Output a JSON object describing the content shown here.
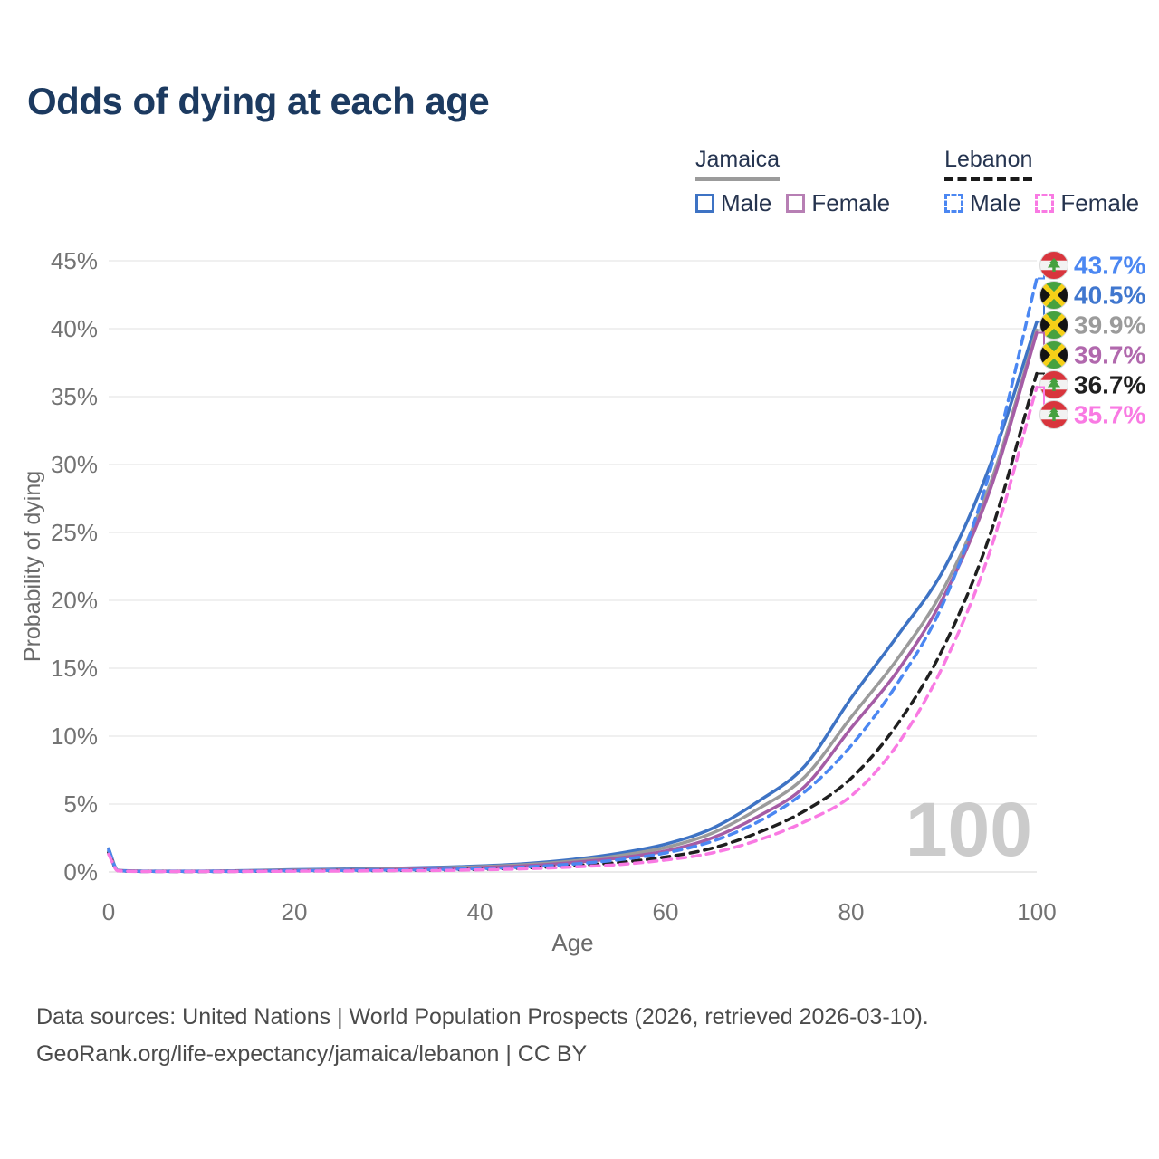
{
  "title": "Odds of dying at each age",
  "watermark_age": "100",
  "legend": {
    "groups": [
      {
        "name": "Jamaica",
        "line_style": "solid",
        "line_color": "#9b9b9b",
        "items": [
          {
            "label": "Male",
            "color": "#3e73c4",
            "dashed": false
          },
          {
            "label": "Female",
            "color": "#b77fb4",
            "dashed": false
          }
        ]
      },
      {
        "name": "Lebanon",
        "line_style": "dashed",
        "line_color": "#1a1a1a",
        "items": [
          {
            "label": "Male",
            "color": "#4b87f2",
            "dashed": true
          },
          {
            "label": "Female",
            "color": "#f97ae3",
            "dashed": true
          }
        ]
      }
    ]
  },
  "chart_data": {
    "type": "line",
    "title": "Odds of dying at each age",
    "xlabel": "Age",
    "ylabel": "Probability of dying",
    "xlim": [
      0,
      100
    ],
    "ylim": [
      0,
      45
    ],
    "x_ticks": [
      0,
      20,
      40,
      60,
      80,
      100
    ],
    "y_ticks": [
      "0%",
      "5%",
      "10%",
      "15%",
      "20%",
      "25%",
      "30%",
      "35%",
      "40%",
      "45%"
    ],
    "grid": "horizontal",
    "legend_position": "top-right",
    "x": [
      0,
      1,
      5,
      10,
      15,
      20,
      25,
      30,
      35,
      40,
      45,
      50,
      55,
      60,
      65,
      70,
      75,
      80,
      85,
      90,
      95,
      100
    ],
    "series": [
      {
        "name": "Jamaica Male",
        "country": "Jamaica",
        "sex": "Male",
        "color": "#3e73c4",
        "dash": "solid",
        "end_value": 40.5,
        "values": [
          1.7,
          0.12,
          0.06,
          0.06,
          0.1,
          0.17,
          0.21,
          0.26,
          0.33,
          0.44,
          0.62,
          0.92,
          1.38,
          2.05,
          3.2,
          5.2,
          7.8,
          12.8,
          17.4,
          22.3,
          30.0,
          40.5
        ]
      },
      {
        "name": "Jamaica Both sexes",
        "country": "Jamaica",
        "sex": "Both",
        "color": "#9b9b9b",
        "dash": "solid",
        "end_value": 39.9,
        "values": [
          1.55,
          0.11,
          0.05,
          0.05,
          0.08,
          0.13,
          0.17,
          0.21,
          0.28,
          0.38,
          0.54,
          0.8,
          1.2,
          1.8,
          2.85,
          4.65,
          7.0,
          11.4,
          15.7,
          20.9,
          28.6,
          39.9
        ]
      },
      {
        "name": "Jamaica Female",
        "country": "Jamaica",
        "sex": "Female",
        "color": "#a55ca5",
        "dash": "solid",
        "end_value": 39.7,
        "values": [
          1.4,
          0.1,
          0.05,
          0.05,
          0.07,
          0.1,
          0.13,
          0.17,
          0.23,
          0.32,
          0.46,
          0.69,
          1.03,
          1.55,
          2.5,
          4.1,
          6.3,
          10.6,
          14.8,
          20.3,
          28.2,
          39.7
        ]
      },
      {
        "name": "Lebanon Both sexes",
        "country": "Lebanon",
        "sex": "Both",
        "color": "#1f1f1f",
        "dash": "dashed",
        "end_value": 36.7,
        "values": [
          1.45,
          0.09,
          0.04,
          0.03,
          0.05,
          0.08,
          0.1,
          0.11,
          0.14,
          0.2,
          0.3,
          0.46,
          0.7,
          1.1,
          1.75,
          2.9,
          4.5,
          6.9,
          10.9,
          16.6,
          24.9,
          36.7
        ]
      },
      {
        "name": "Lebanon Male",
        "country": "Lebanon",
        "sex": "Male",
        "color": "#4b87f2",
        "dash": "dashed",
        "end_value": 43.7,
        "values": [
          1.6,
          0.1,
          0.04,
          0.04,
          0.06,
          0.1,
          0.12,
          0.14,
          0.18,
          0.25,
          0.37,
          0.58,
          0.9,
          1.4,
          2.25,
          3.7,
          5.9,
          9.3,
          13.9,
          19.9,
          29.6,
          43.7
        ]
      },
      {
        "name": "Lebanon Female",
        "country": "Lebanon",
        "sex": "Female",
        "color": "#f97ae3",
        "dash": "dashed",
        "end_value": 35.7,
        "values": [
          1.3,
          0.08,
          0.03,
          0.03,
          0.04,
          0.06,
          0.07,
          0.09,
          0.11,
          0.16,
          0.24,
          0.37,
          0.55,
          0.88,
          1.4,
          2.35,
          3.7,
          5.6,
          9.4,
          15.3,
          23.7,
          35.7
        ]
      }
    ],
    "end_labels": [
      {
        "series": "Lebanon Male",
        "flag": "lebanon",
        "text": "43.7%",
        "color": "#4b87f2",
        "value": 43.7
      },
      {
        "series": "Jamaica Male",
        "flag": "jamaica",
        "text": "40.5%",
        "color": "#4077cf",
        "value": 40.5
      },
      {
        "series": "Jamaica Both sexes",
        "flag": "jamaica",
        "text": "39.9%",
        "color": "#9b9b9b",
        "value": 39.9
      },
      {
        "series": "Jamaica Female",
        "flag": "jamaica",
        "text": "39.7%",
        "color": "#b168ad",
        "value": 39.7
      },
      {
        "series": "Lebanon Both sexes",
        "flag": "lebanon",
        "text": "36.7%",
        "color": "#1f1f1f",
        "value": 36.7
      },
      {
        "series": "Lebanon Female",
        "flag": "lebanon",
        "text": "35.7%",
        "color": "#f97ae3",
        "value": 35.7
      }
    ]
  },
  "footer": {
    "line1": "Data sources: United Nations | World Population Prospects (2026, retrieved 2026-03-10).",
    "line2": "GeoRank.org/life-expectancy/jamaica/lebanon | CC BY"
  }
}
